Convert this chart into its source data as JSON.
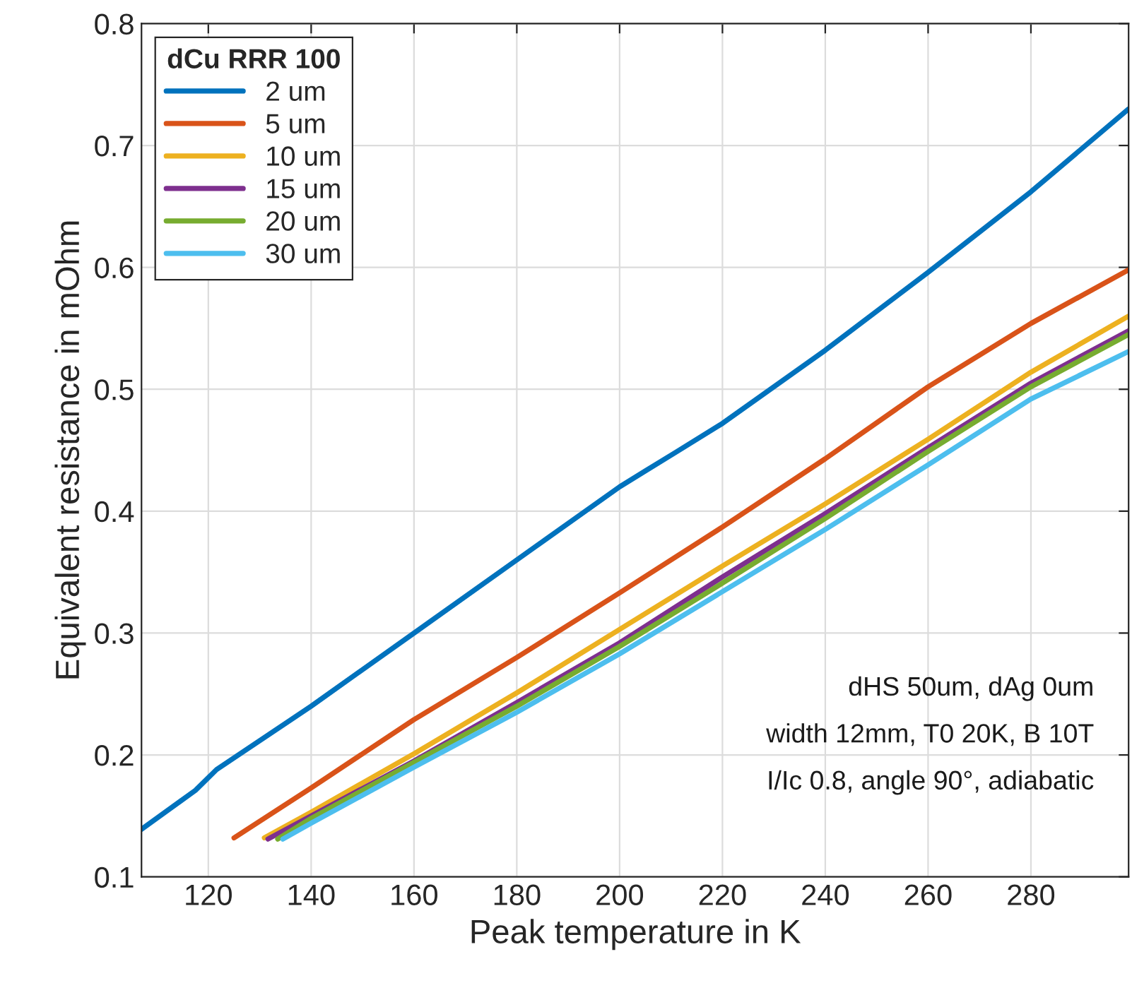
{
  "chart_data": {
    "type": "line",
    "xlabel": "Peak temperature in K",
    "ylabel": "Equivalent resistance in mOhm",
    "legend_title": "dCu RRR 100",
    "legend": "top left",
    "grid": true,
    "line_style": "solid",
    "marker": "none",
    "xlim": [
      107,
      299
    ],
    "xticks": [
      120,
      140,
      160,
      180,
      200,
      220,
      240,
      260,
      280
    ],
    "ylim": [
      0.1,
      0.8
    ],
    "yticks": [
      0.1,
      0.2,
      0.3,
      0.4,
      0.5,
      0.6,
      0.7,
      0.8
    ],
    "series": [
      {
        "name": "2 um",
        "color": "#0072bd",
        "x": [
          107,
          117.5,
          121.6,
          140,
          160,
          180,
          200,
          205,
          210.8,
          220,
          240,
          260,
          280,
          299
        ],
        "values": [
          0.139,
          0.171,
          0.188,
          0.24,
          0.3,
          0.36,
          0.42,
          0.433,
          0.448,
          0.472,
          0.532,
          0.596,
          0.662,
          0.73
        ]
      },
      {
        "name": "5 um",
        "color": "#d95319",
        "x": [
          125,
          140,
          160,
          180,
          200,
          220,
          240,
          260,
          280,
          299
        ],
        "values": [
          0.132,
          0.173,
          0.229,
          0.28,
          0.333,
          0.387,
          0.443,
          0.502,
          0.554,
          0.598
        ]
      },
      {
        "name": "10 um",
        "color": "#edb120",
        "x": [
          130.9,
          140,
          160,
          180,
          200,
          220,
          240,
          260,
          280,
          299
        ],
        "values": [
          0.132,
          0.153,
          0.201,
          0.251,
          0.303,
          0.355,
          0.406,
          0.459,
          0.514,
          0.56
        ]
      },
      {
        "name": "15 um",
        "color": "#7e2f8e",
        "x": [
          131.6,
          140,
          160,
          180,
          200,
          220,
          240,
          260,
          280,
          299
        ],
        "values": [
          0.131,
          0.15,
          0.195,
          0.243,
          0.292,
          0.346,
          0.398,
          0.452,
          0.505,
          0.548
        ]
      },
      {
        "name": "20 um",
        "color": "#77ac30",
        "x": [
          133.5,
          140,
          160,
          180,
          200,
          220,
          240,
          260,
          280,
          299
        ],
        "values": [
          0.131,
          0.148,
          0.194,
          0.24,
          0.289,
          0.341,
          0.394,
          0.449,
          0.502,
          0.545
        ]
      },
      {
        "name": "30 um",
        "color": "#4dbeee",
        "x": [
          134.5,
          140,
          160,
          180,
          200,
          220,
          240,
          260,
          280,
          299
        ],
        "values": [
          0.131,
          0.144,
          0.19,
          0.235,
          0.283,
          0.334,
          0.385,
          0.438,
          0.492,
          0.531
        ]
      }
    ],
    "annotations": [
      "dHS 50um, dAg 0um",
      "width 12mm, T0 20K, B 10T",
      "I/Ic 0.8, angle 90°, adiabatic"
    ]
  }
}
